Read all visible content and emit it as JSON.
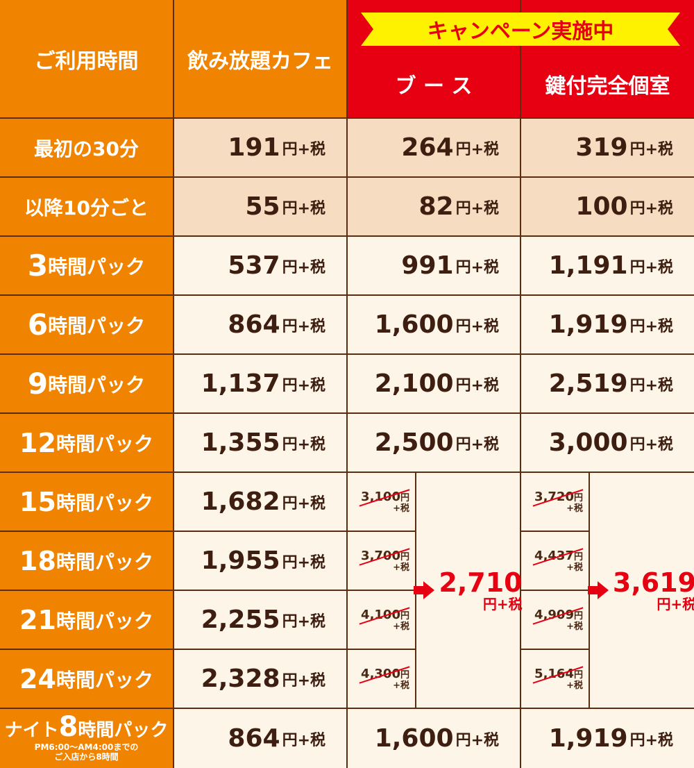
{
  "header": {
    "usage_time": "ご利用時間",
    "cafe": "飲み放題カフェ",
    "campaign": "キャンペーン実施中",
    "booth": "ブ ー ス",
    "private_room": "鍵付完全個室"
  },
  "unit_label": "円+税",
  "rows": [
    {
      "label": "最初の30分",
      "cafe": "191",
      "booth": "264",
      "room": "319"
    },
    {
      "label": "以降10分ごと",
      "cafe": "55",
      "booth": "82",
      "room": "100"
    },
    {
      "label_num": "3",
      "label_suffix": "時間パック",
      "cafe": "537",
      "booth": "991",
      "room": "1,191"
    },
    {
      "label_num": "6",
      "label_suffix": "時間パック",
      "cafe": "864",
      "booth": "1,600",
      "room": "1,919"
    },
    {
      "label_num": "9",
      "label_suffix": "時間パック",
      "cafe": "1,137",
      "booth": "2,100",
      "room": "2,519"
    },
    {
      "label_num": "12",
      "label_suffix": "時間パック",
      "cafe": "1,355",
      "booth": "2,500",
      "room": "3,000"
    }
  ],
  "long_rows": [
    {
      "label_num": "15",
      "label_suffix": "時間パック",
      "cafe": "1,682",
      "booth_old": "3,100",
      "room_old": "3,720"
    },
    {
      "label_num": "18",
      "label_suffix": "時間パック",
      "cafe": "1,955",
      "booth_old": "3,700",
      "room_old": "4,437"
    },
    {
      "label_num": "21",
      "label_suffix": "時間パック",
      "cafe": "2,255",
      "booth_old": "4,100",
      "room_old": "4,909"
    },
    {
      "label_num": "24",
      "label_suffix": "時間パック",
      "cafe": "2,328",
      "booth_old": "4,300",
      "room_old": "5,164"
    }
  ],
  "old_unit": "円",
  "old_tax": "+税",
  "campaign_price": {
    "booth": "2,710",
    "room": "3,619"
  },
  "night": {
    "label_prefix": "ナイト",
    "label_num": "8",
    "label_suffix": "時間パック",
    "note1": "PM6:00～AM4:00までの",
    "note2": "ご入店から8時間",
    "cafe": "864",
    "booth": "1,600",
    "room": "1,919"
  },
  "colors": {
    "orange": "#f08300",
    "red": "#e60012",
    "yellow": "#fff200",
    "brown": "#3d1e10"
  }
}
